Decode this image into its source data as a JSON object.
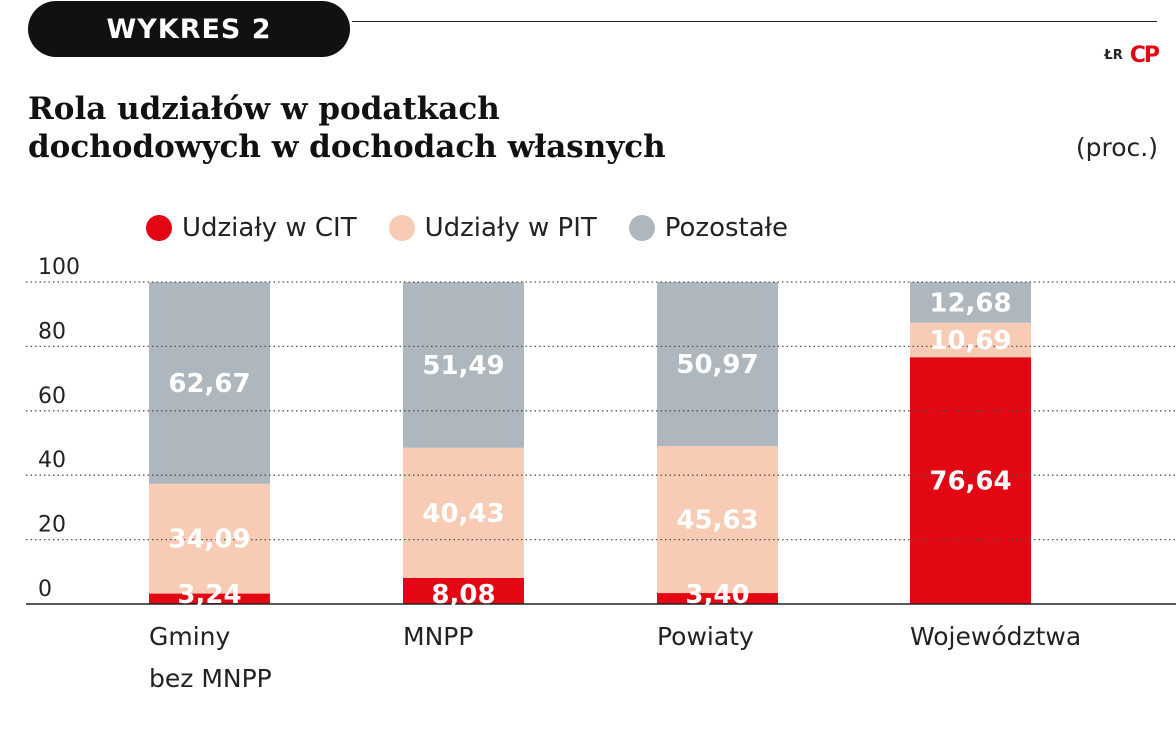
{
  "header": {
    "badge": "WYKRES 2",
    "credit_text": "ŁR",
    "credit_logo": "CP",
    "title_line1": "Rola udziałów w podatkach",
    "title_line2": "dochodowych w dochodach własnych",
    "unit": "(proc.)"
  },
  "colors": {
    "cit": "#e30613",
    "pit": "#f8cbb4",
    "pozostale": "#aeb7bd",
    "axis": "#222222",
    "text": "#222222",
    "segment_label": "#ffffff"
  },
  "chart_data": {
    "type": "bar",
    "stacked": true,
    "categories": [
      [
        "Gminy",
        "bez MNPP"
      ],
      [
        "MNPP"
      ],
      [
        "Powiaty"
      ],
      [
        "Województwa"
      ]
    ],
    "series": [
      {
        "name": "Udziały w CIT",
        "color_key": "cit",
        "values": [
          3.24,
          8.08,
          3.4,
          76.64
        ],
        "labels": [
          "3,24",
          "8,08",
          "3,40",
          "76,64"
        ]
      },
      {
        "name": "Udziały w PIT",
        "color_key": "pit",
        "values": [
          34.09,
          40.43,
          45.63,
          10.69
        ],
        "labels": [
          "34,09",
          "40,43",
          "45,63",
          "10,69"
        ]
      },
      {
        "name": "Pozostałe",
        "color_key": "pozostale",
        "values": [
          62.67,
          51.49,
          50.97,
          12.68
        ],
        "labels": [
          "62,67",
          "51,49",
          "50,97",
          "12,68"
        ]
      }
    ],
    "ylim": [
      0,
      100
    ],
    "yticks": [
      "0",
      "20",
      "40",
      "60",
      "80",
      "100"
    ],
    "grid": true,
    "legend_position": "top-left"
  }
}
